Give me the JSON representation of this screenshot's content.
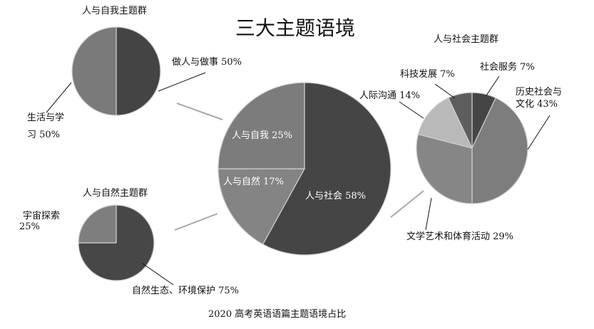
{
  "chart_data": [
    {
      "type": "pie",
      "title": "三大主题语境",
      "slices": [
        {
          "label": "人与社会",
          "value": 58
        },
        {
          "label": "人与自然",
          "value": 17
        },
        {
          "label": "人与自我",
          "value": 25
        }
      ],
      "colors": [
        "#454545",
        "#848484",
        "#7c7c7c"
      ]
    },
    {
      "type": "pie",
      "title": "人与自我主题群",
      "slices": [
        {
          "label": "做人与做事",
          "value": 50
        },
        {
          "label": "生活与学习",
          "value": 50
        }
      ],
      "colors": [
        "#444444",
        "#7a7a7a"
      ]
    },
    {
      "type": "pie",
      "title": "人与自然主题群",
      "slices": [
        {
          "label": "自然生态、环境保护",
          "value": 75
        },
        {
          "label": "宇宙探索",
          "value": 25
        }
      ],
      "colors": [
        "#474747",
        "#7e7e7e"
      ]
    },
    {
      "type": "pie",
      "title": "人与社会主题群",
      "slices": [
        {
          "label": "社会服务",
          "value": 7
        },
        {
          "label": "历史社会与文化",
          "value": 43
        },
        {
          "label": "文学艺术和体育活动",
          "value": 29
        },
        {
          "label": "人际沟通",
          "value": 14
        },
        {
          "label": "科技发展",
          "value": 7
        }
      ],
      "colors": [
        "#454545",
        "#7d7d7d",
        "#868686",
        "#b9b9b9",
        "#5e5e5e"
      ]
    }
  ],
  "labels": {
    "main": [
      "人与社会 58%",
      "人与自然 17%",
      "人与自我 25%"
    ],
    "self": [
      "做人与做事 50%",
      "生活与学",
      "习 50%"
    ],
    "nature": [
      "自然生态、环境保护 75%",
      "宇宙探索",
      "25%"
    ],
    "society": [
      "社会服务 7%",
      "历史社会与",
      "文化 43%",
      "文学艺术和体育活动 29%",
      "人际沟通 14%",
      "科技发展 7%"
    ]
  },
  "caption": "2020 高考英语语篇主题语境占比"
}
